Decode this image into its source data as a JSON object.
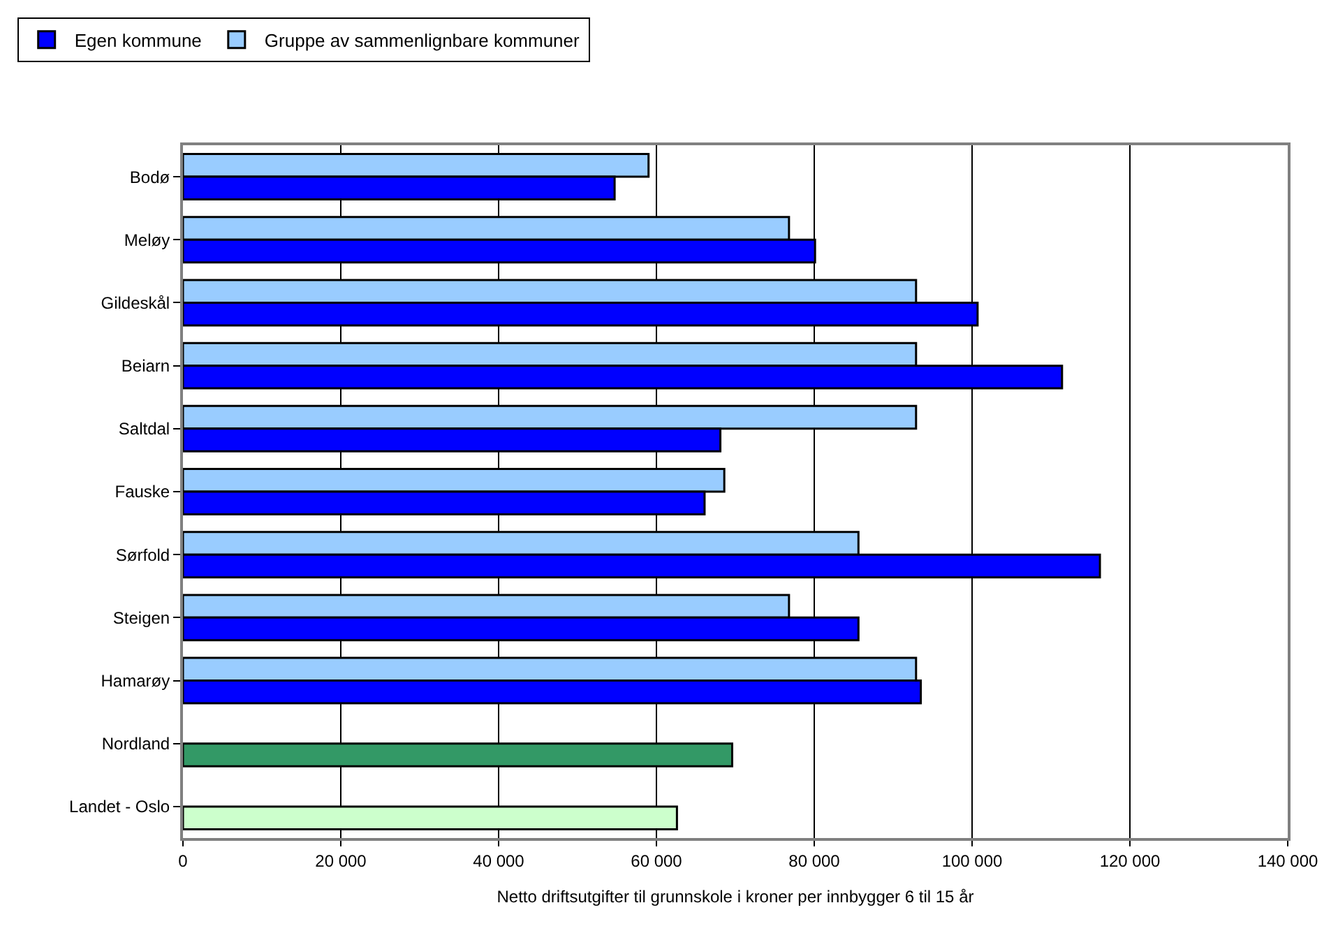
{
  "chart_data": {
    "type": "bar",
    "orientation": "horizontal",
    "xlabel": "Netto driftsutgifter til grunnskole i kroner per innbygger 6 til 15 år",
    "categories": [
      "Bodø",
      "Meløy",
      "Gildeskål",
      "Beiarn",
      "Saltdal",
      "Fauske",
      "Sørfold",
      "Steigen",
      "Hamarøy",
      "Nordland",
      "Landet - Oslo"
    ],
    "series": [
      {
        "name": "Egen kommune",
        "color": "#0000ff",
        "colors": [
          "#0000ff",
          "#0000ff",
          "#0000ff",
          "#0000ff",
          "#0000ff",
          "#0000ff",
          "#0000ff",
          "#0000ff",
          "#0000ff",
          "#339966",
          "#ccffcc"
        ],
        "values": [
          54700,
          80100,
          100700,
          111400,
          68100,
          66100,
          116200,
          85600,
          93500,
          69600,
          62600
        ]
      },
      {
        "name": "Gruppe av sammenlignbare kommuner",
        "color": "#99ccff",
        "values": [
          59000,
          76800,
          92900,
          92900,
          92900,
          68600,
          85600,
          76800,
          92900,
          null,
          null
        ]
      }
    ],
    "xlim": [
      0,
      140000
    ],
    "xticks": [
      0,
      {
        "value": 20000,
        "label": "20 000"
      },
      {
        "value": 40000,
        "label": "40 000"
      },
      {
        "value": 60000,
        "label": "60 000"
      },
      {
        "value": 80000,
        "label": "80 000"
      },
      {
        "value": 100000,
        "label": "100 000"
      },
      {
        "value": 120000,
        "label": "120 000"
      },
      {
        "value": 140000,
        "label": "140 000"
      }
    ],
    "grid": "x",
    "legend": "top left"
  }
}
